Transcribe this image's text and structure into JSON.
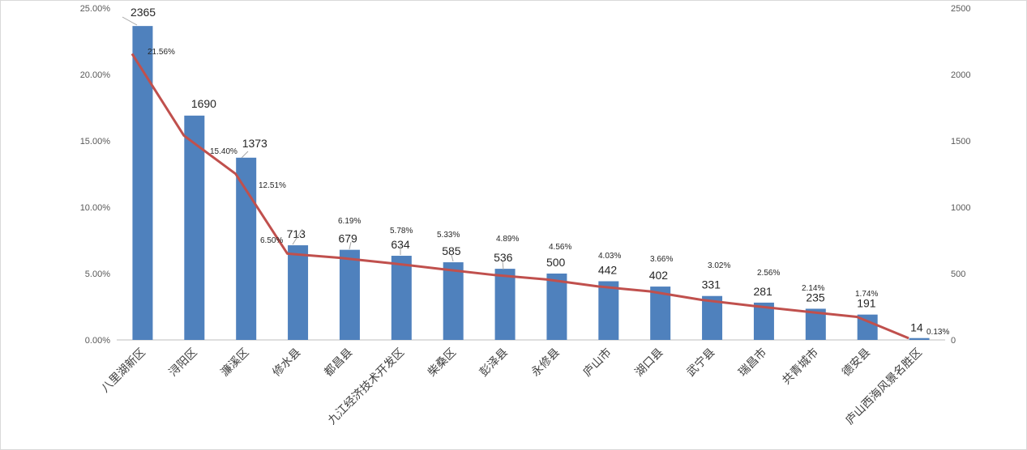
{
  "chart_data": {
    "type": "bar",
    "categories": [
      "八里湖新区",
      "浔阳区",
      "濂溪区",
      "修水县",
      "都昌县",
      "九江经济技术开发区",
      "柴桑区",
      "彭泽县",
      "永修县",
      "庐山市",
      "湖口县",
      "武宁县",
      "瑞昌市",
      "共青城市",
      "德安县",
      "庐山西海风景名胜区"
    ],
    "series": [
      {
        "type": "bar",
        "axis": "right",
        "values": [
          2365,
          1690,
          1373,
          713,
          679,
          634,
          585,
          536,
          500,
          442,
          402,
          331,
          281,
          235,
          191,
          14
        ],
        "labels": [
          "2365",
          "1690",
          "1373",
          "713",
          "679",
          "634",
          "585",
          "536",
          "500",
          "442",
          "402",
          "331",
          "281",
          "235",
          "191",
          "14"
        ]
      },
      {
        "type": "line",
        "axis": "left",
        "values": [
          21.56,
          15.4,
          12.51,
          6.5,
          6.19,
          5.78,
          5.33,
          4.89,
          4.56,
          4.03,
          3.66,
          3.02,
          2.56,
          2.14,
          1.74,
          0.13
        ],
        "labels": [
          "21.56%",
          "15.40%",
          "12.51%",
          "6.50%",
          "6.19%",
          "5.78%",
          "5.33%",
          "4.89%",
          "4.56%",
          "4.03%",
          "3.66%",
          "3.02%",
          "2.56%",
          "2.14%",
          "1.74%",
          "0.13%"
        ]
      }
    ],
    "left_axis": {
      "ylim": [
        0,
        25
      ],
      "ticks": [
        "0.00%",
        "5.00%",
        "10.00%",
        "15.00%",
        "20.00%",
        "25.00%"
      ]
    },
    "right_axis": {
      "ylim": [
        0,
        2500
      ],
      "ticks": [
        "0",
        "500",
        "1000",
        "1500",
        "2000",
        "2500"
      ]
    },
    "grid": false,
    "legend": "none",
    "colors": {
      "bar": "#4f81bd",
      "line": "#c0504d",
      "axis": "#bfbfbf",
      "leader": "#a6a6a6"
    }
  }
}
